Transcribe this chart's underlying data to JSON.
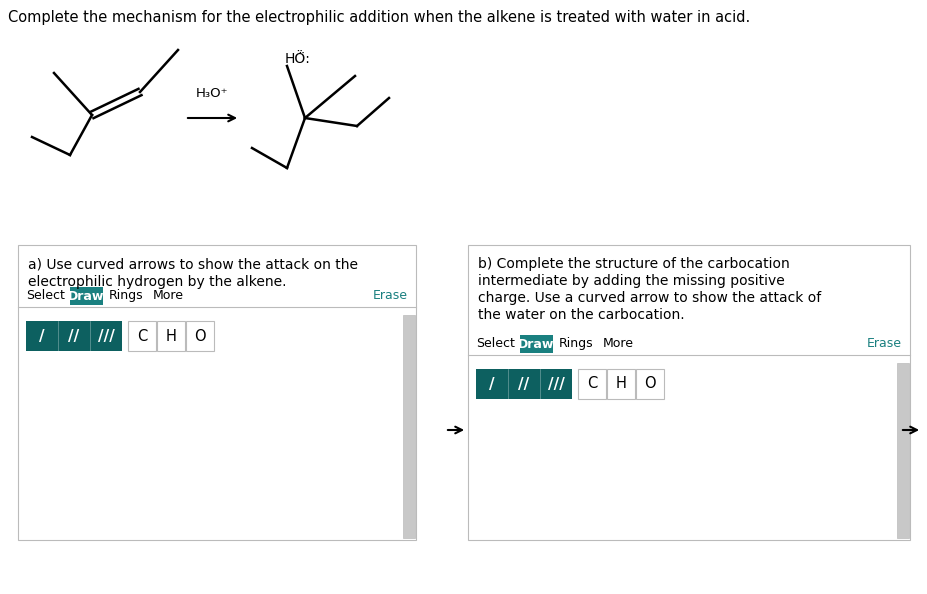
{
  "title_text": "Complete the mechanism for the electrophilic addition when the alkene is treated with water in acid.",
  "title_color": "#000000",
  "title_fontsize": 10.5,
  "bg_color": "#ffffff",
  "teal_color": "#1a8080",
  "teal_dark": "#0d6060",
  "border_color": "#bbbbbb",
  "text_color": "#000000",
  "gray_scroll": "#c0c0c0",
  "panel_a_label_line1": "a) Use curved arrows to show the attack on the",
  "panel_a_label_line2": "electrophilic hydrogen by the alkene.",
  "panel_b_label_line1": "b) Complete the structure of the carbocation",
  "panel_b_label_line2": "intermediate by adding the missing positive",
  "panel_b_label_line3": "charge. Use a curved arrow to show the attack of",
  "panel_b_label_line4": "the water on the carbocation.",
  "h3o_label": "H₃O⁺",
  "erase_color": "#1a8080"
}
